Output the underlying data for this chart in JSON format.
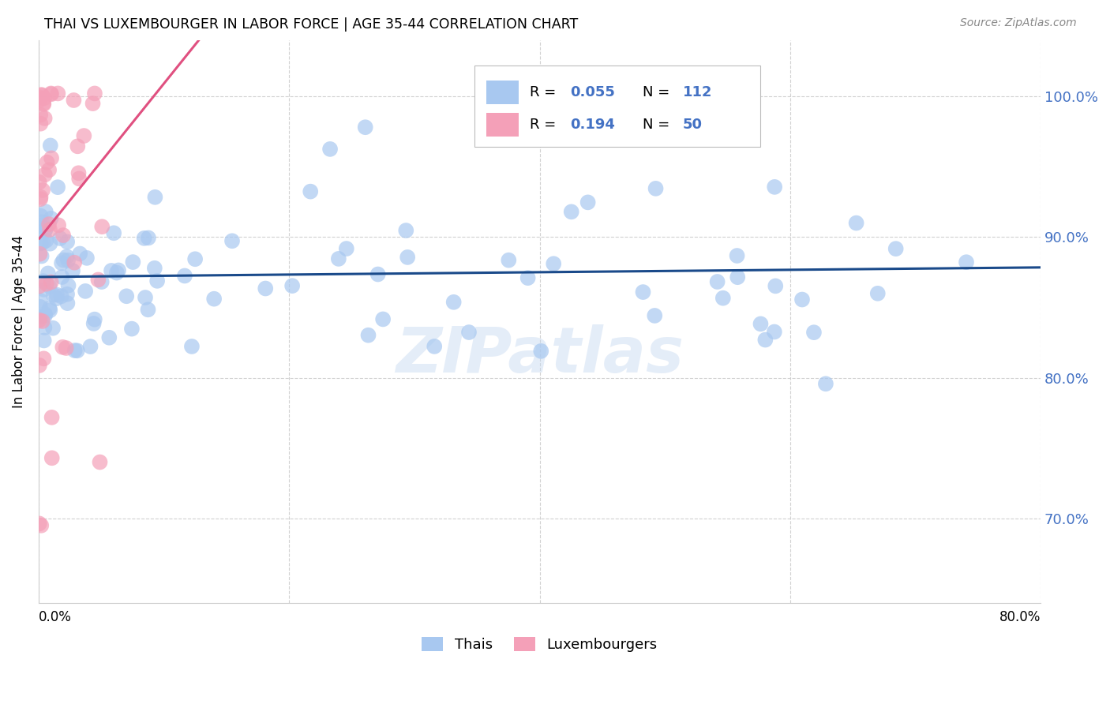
{
  "title": "THAI VS LUXEMBOURGER IN LABOR FORCE | AGE 35-44 CORRELATION CHART",
  "source": "Source: ZipAtlas.com",
  "ylabel": "In Labor Force | Age 35-44",
  "xlim": [
    0.0,
    0.8
  ],
  "ylim": [
    0.64,
    1.04
  ],
  "watermark": "ZIPatlas",
  "thai_R": "0.055",
  "thai_N": "112",
  "lux_R": "0.194",
  "lux_N": "50",
  "thai_color": "#A8C8F0",
  "lux_color": "#F4A0B8",
  "thai_line_color": "#1A4A8A",
  "lux_line_color": "#E05080",
  "grid_color": "#CCCCCC",
  "ytick_color": "#4472C4",
  "background_color": "#FFFFFF",
  "ytick_vals": [
    0.7,
    0.8,
    0.9,
    1.0
  ],
  "ytick_labels": [
    "70.0%",
    "80.0%",
    "90.0%",
    "100.0%"
  ],
  "thai_seed": 42,
  "lux_seed": 99
}
